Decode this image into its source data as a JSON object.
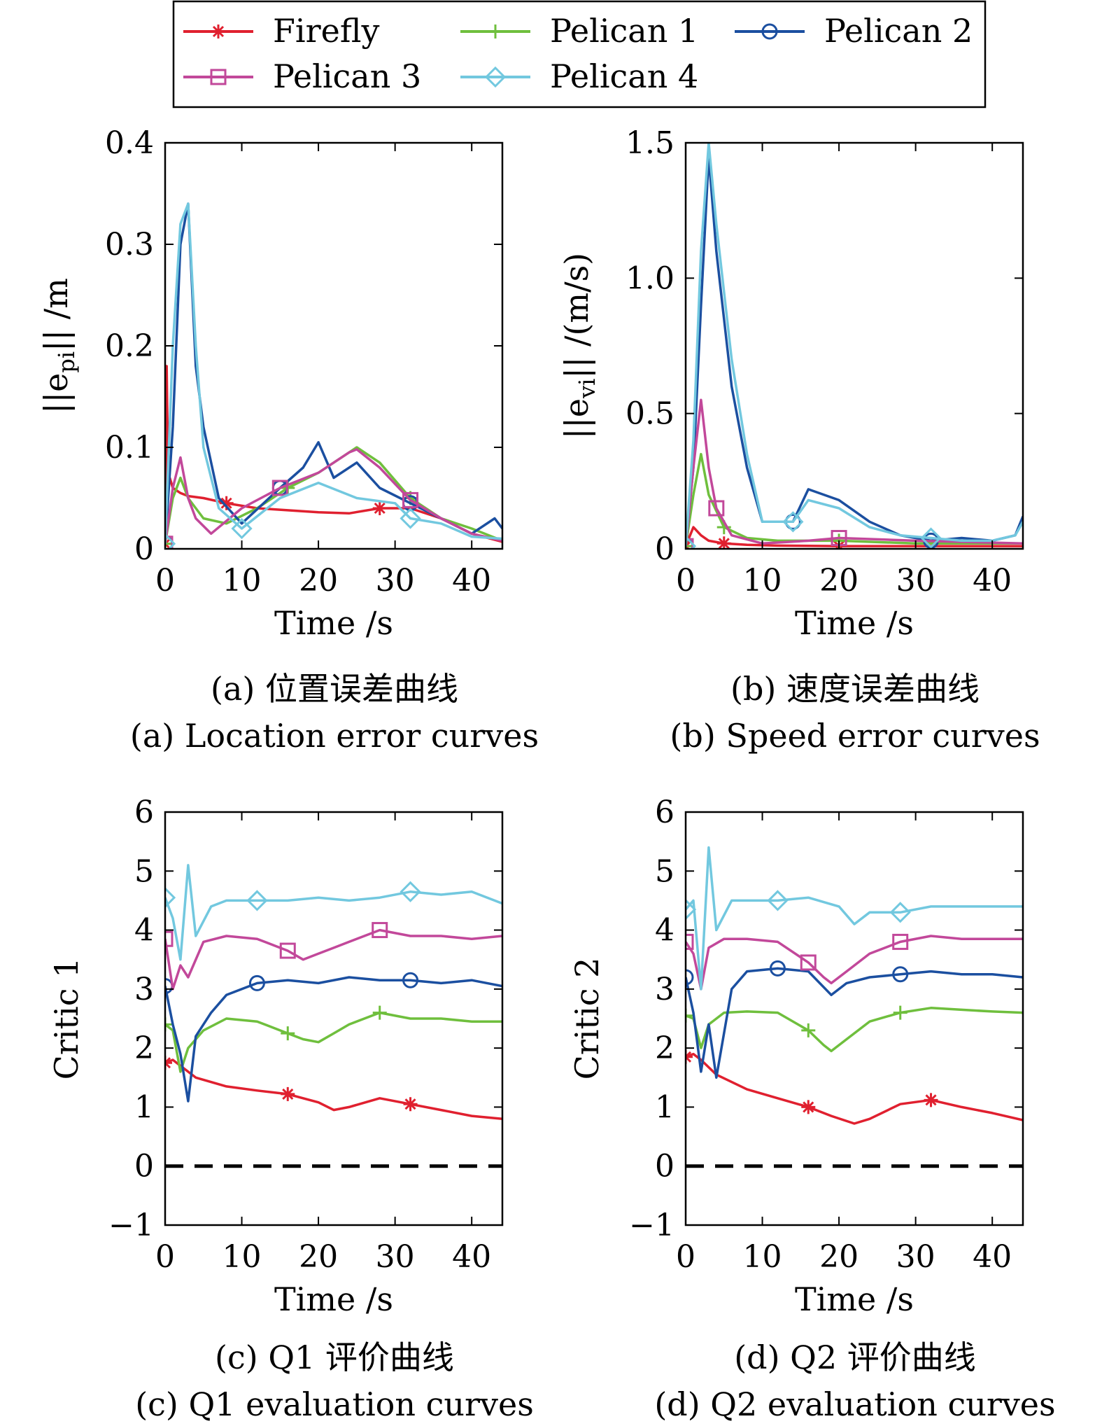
{
  "legend": [
    {
      "name": "Firefly",
      "color": "#e0202f",
      "marker": "asterisk"
    },
    {
      "name": "Pelican 1",
      "color": "#6fbf3d",
      "marker": "plus"
    },
    {
      "name": "Pelican 2",
      "color": "#1b4fa0",
      "marker": "circle"
    },
    {
      "name": "Pelican 3",
      "color": "#c2489a",
      "marker": "square"
    },
    {
      "name": "Pelican 4",
      "color": "#72c8df",
      "marker": "diamond"
    }
  ],
  "chart_data": [
    {
      "id": "a",
      "type": "line",
      "caption_cn": "(a) 位置误差曲线",
      "caption_en": "(a) Location error curves",
      "xlabel": "Time /s",
      "ylabel": "||e_pi|| /m",
      "ylabel_main": "||e",
      "ylabel_sub": "pi",
      "ylabel_tail": "|| /m",
      "xlim": [
        0,
        44
      ],
      "ylim": [
        0,
        0.4
      ],
      "xticks": [
        0,
        10,
        20,
        30,
        40
      ],
      "xticklabels": [
        "0",
        "10",
        "20",
        "30",
        "40"
      ],
      "yticks": [
        0,
        0.1,
        0.2,
        0.3,
        0.4
      ],
      "yticklabels": [
        "0",
        "0.1",
        "0.2",
        "0.3",
        "0.4"
      ],
      "series": [
        {
          "name": "Firefly",
          "x": [
            0,
            0.2,
            0.4,
            0.6,
            1,
            2,
            3,
            5,
            8,
            12,
            16,
            20,
            24,
            28,
            32,
            36,
            40,
            44
          ],
          "y": [
            0.005,
            0.18,
            0.06,
            0.07,
            0.06,
            0.055,
            0.052,
            0.05,
            0.045,
            0.04,
            0.038,
            0.036,
            0.035,
            0.04,
            0.04,
            0.03,
            0.015,
            0.007
          ]
        },
        {
          "name": "Pelican 1",
          "x": [
            0,
            1,
            2,
            3,
            5,
            8,
            12,
            16,
            20,
            24,
            25,
            28,
            32,
            36,
            40,
            44
          ],
          "y": [
            0.005,
            0.05,
            0.07,
            0.05,
            0.03,
            0.025,
            0.04,
            0.06,
            0.075,
            0.095,
            0.1,
            0.085,
            0.05,
            0.03,
            0.02,
            0.008
          ]
        },
        {
          "name": "Pelican 2",
          "x": [
            0,
            1,
            2,
            3,
            4,
            5,
            7,
            10,
            15,
            18,
            20,
            22,
            25,
            28,
            32,
            36,
            40,
            43,
            44
          ],
          "y": [
            0.005,
            0.12,
            0.3,
            0.34,
            0.18,
            0.12,
            0.05,
            0.025,
            0.06,
            0.08,
            0.105,
            0.07,
            0.085,
            0.06,
            0.045,
            0.03,
            0.015,
            0.03,
            0.02
          ]
        },
        {
          "name": "Pelican 3",
          "x": [
            0,
            1,
            2,
            3,
            4,
            6,
            10,
            15,
            20,
            24,
            25,
            28,
            32,
            36,
            40,
            44
          ],
          "y": [
            0.005,
            0.06,
            0.09,
            0.05,
            0.03,
            0.015,
            0.04,
            0.06,
            0.075,
            0.095,
            0.098,
            0.08,
            0.048,
            0.03,
            0.015,
            0.008
          ]
        },
        {
          "name": "Pelican 4",
          "x": [
            0,
            1,
            2,
            3,
            4,
            5,
            7,
            10,
            15,
            20,
            25,
            30,
            32,
            36,
            40,
            44
          ],
          "y": [
            0.005,
            0.2,
            0.32,
            0.34,
            0.2,
            0.1,
            0.04,
            0.02,
            0.05,
            0.065,
            0.05,
            0.045,
            0.03,
            0.025,
            0.012,
            0.01
          ]
        }
      ]
    },
    {
      "id": "b",
      "type": "line",
      "caption_cn": "(b) 速度误差曲线",
      "caption_en": "(b) Speed error curves",
      "xlabel": "Time /s",
      "ylabel": "||e_vi|| /(m/s)",
      "ylabel_main": "||e",
      "ylabel_sub": "vi",
      "ylabel_tail": "|| /(m/s)",
      "xlim": [
        0,
        44
      ],
      "ylim": [
        0,
        1.5
      ],
      "xticks": [
        0,
        10,
        20,
        30,
        40
      ],
      "xticklabels": [
        "0",
        "10",
        "20",
        "30",
        "40"
      ],
      "yticks": [
        0,
        0.5,
        1.0,
        1.5
      ],
      "yticklabels": [
        "0",
        "0.5",
        "1.0",
        "1.5"
      ],
      "series": [
        {
          "name": "Firefly",
          "x": [
            0,
            1,
            2,
            3,
            5,
            8,
            12,
            20,
            30,
            44
          ],
          "y": [
            0.01,
            0.08,
            0.05,
            0.03,
            0.02,
            0.015,
            0.012,
            0.01,
            0.01,
            0.01
          ]
        },
        {
          "name": "Pelican 1",
          "x": [
            0,
            1,
            2,
            3,
            5,
            8,
            12,
            20,
            30,
            44
          ],
          "y": [
            0.01,
            0.2,
            0.35,
            0.2,
            0.08,
            0.04,
            0.03,
            0.03,
            0.02,
            0.02
          ]
        },
        {
          "name": "Pelican 2",
          "x": [
            0,
            1,
            2,
            3,
            4,
            6,
            8,
            10,
            14,
            16,
            20,
            24,
            28,
            32,
            36,
            40,
            43,
            44
          ],
          "y": [
            0.01,
            0.3,
            0.9,
            1.45,
            1.1,
            0.6,
            0.3,
            0.1,
            0.1,
            0.22,
            0.18,
            0.1,
            0.05,
            0.03,
            0.04,
            0.03,
            0.05,
            0.12
          ]
        },
        {
          "name": "Pelican 3",
          "x": [
            0,
            1,
            2,
            3,
            4,
            6,
            10,
            16,
            20,
            30,
            44
          ],
          "y": [
            0.01,
            0.3,
            0.55,
            0.3,
            0.15,
            0.05,
            0.02,
            0.03,
            0.04,
            0.03,
            0.02
          ]
        },
        {
          "name": "Pelican 4",
          "x": [
            0,
            1,
            2,
            3,
            4,
            6,
            8,
            10,
            14,
            16,
            20,
            24,
            28,
            32,
            36,
            40,
            43,
            44
          ],
          "y": [
            0.01,
            0.4,
            1.1,
            1.5,
            1.2,
            0.7,
            0.35,
            0.1,
            0.1,
            0.18,
            0.15,
            0.08,
            0.05,
            0.04,
            0.03,
            0.03,
            0.05,
            0.1
          ]
        }
      ]
    },
    {
      "id": "c",
      "type": "line",
      "caption_cn": "(c) Q1 评价曲线",
      "caption_en": "(c) Q1 evaluation curves",
      "xlabel": "Time /s",
      "ylabel": "Critic 1",
      "ylabel_main": "Critic 1",
      "ylabel_sub": "",
      "ylabel_tail": "",
      "xlim": [
        0,
        44
      ],
      "ylim": [
        -1,
        6
      ],
      "xticks": [
        0,
        10,
        20,
        30,
        40
      ],
      "xticklabels": [
        "0",
        "10",
        "20",
        "30",
        "40"
      ],
      "yticks": [
        -1,
        0,
        1,
        2,
        3,
        4,
        5,
        6
      ],
      "yticklabels": [
        "−1",
        "0",
        "1",
        "2",
        "3",
        "4",
        "5",
        "6"
      ],
      "zero_line": true,
      "series": [
        {
          "name": "Firefly",
          "x": [
            0,
            1,
            2,
            4,
            8,
            12,
            16,
            20,
            22,
            24,
            28,
            32,
            36,
            40,
            44
          ],
          "y": [
            1.75,
            1.8,
            1.7,
            1.5,
            1.35,
            1.28,
            1.22,
            1.08,
            0.95,
            1.0,
            1.15,
            1.05,
            0.95,
            0.85,
            0.8
          ]
        },
        {
          "name": "Pelican 1",
          "x": [
            0,
            1,
            2,
            3,
            5,
            8,
            12,
            16,
            18,
            20,
            22,
            24,
            28,
            32,
            36,
            40,
            44
          ],
          "y": [
            2.4,
            2.3,
            1.6,
            2.0,
            2.3,
            2.5,
            2.45,
            2.25,
            2.15,
            2.1,
            2.25,
            2.4,
            2.6,
            2.5,
            2.5,
            2.45,
            2.45
          ]
        },
        {
          "name": "Pelican 2",
          "x": [
            0,
            1,
            2,
            3,
            4,
            6,
            8,
            12,
            16,
            20,
            24,
            28,
            32,
            36,
            40,
            44
          ],
          "y": [
            3.05,
            2.4,
            1.9,
            1.1,
            2.2,
            2.6,
            2.9,
            3.1,
            3.15,
            3.1,
            3.2,
            3.15,
            3.15,
            3.1,
            3.15,
            3.05
          ]
        },
        {
          "name": "Pelican 3",
          "x": [
            0,
            1,
            2,
            3,
            5,
            8,
            12,
            16,
            18,
            20,
            22,
            24,
            28,
            32,
            36,
            40,
            44
          ],
          "y": [
            3.85,
            3.0,
            3.4,
            3.2,
            3.8,
            3.9,
            3.85,
            3.65,
            3.5,
            3.6,
            3.7,
            3.8,
            4.0,
            3.9,
            3.9,
            3.85,
            3.9
          ]
        },
        {
          "name": "Pelican 4",
          "x": [
            0,
            1,
            2,
            3,
            4,
            6,
            8,
            12,
            16,
            20,
            24,
            28,
            32,
            36,
            40,
            44
          ],
          "y": [
            4.55,
            4.2,
            3.5,
            5.1,
            3.9,
            4.4,
            4.5,
            4.5,
            4.5,
            4.55,
            4.5,
            4.55,
            4.65,
            4.6,
            4.65,
            4.45
          ]
        }
      ]
    },
    {
      "id": "d",
      "type": "line",
      "caption_cn": "(d) Q2 评价曲线",
      "caption_en": "(d) Q2 evaluation curves",
      "xlabel": "Time /s",
      "ylabel": "Critic 2",
      "ylabel_main": "Critic 2",
      "ylabel_sub": "",
      "ylabel_tail": "",
      "xlim": [
        0,
        44
      ],
      "ylim": [
        -1,
        6
      ],
      "xticks": [
        0,
        10,
        20,
        30,
        40
      ],
      "xticklabels": [
        "0",
        "10",
        "20",
        "30",
        "40"
      ],
      "yticks": [
        -1,
        0,
        1,
        2,
        3,
        4,
        5,
        6
      ],
      "yticklabels": [
        "−1",
        "0",
        "1",
        "2",
        "3",
        "4",
        "5",
        "6"
      ],
      "zero_line": true,
      "series": [
        {
          "name": "Firefly",
          "x": [
            0,
            1,
            2,
            4,
            8,
            12,
            16,
            19,
            22,
            24,
            28,
            32,
            36,
            40,
            44
          ],
          "y": [
            1.85,
            1.9,
            1.8,
            1.55,
            1.3,
            1.15,
            1.0,
            0.85,
            0.72,
            0.8,
            1.05,
            1.12,
            1.0,
            0.9,
            0.78
          ]
        },
        {
          "name": "Pelican 1",
          "x": [
            0,
            1,
            2,
            3,
            5,
            8,
            12,
            16,
            18,
            19,
            21,
            24,
            28,
            32,
            36,
            40,
            44
          ],
          "y": [
            2.55,
            2.5,
            2.0,
            2.4,
            2.6,
            2.62,
            2.6,
            2.3,
            2.05,
            1.95,
            2.15,
            2.45,
            2.6,
            2.68,
            2.65,
            2.62,
            2.6
          ]
        },
        {
          "name": "Pelican 2",
          "x": [
            0,
            1,
            2,
            3,
            4,
            6,
            8,
            12,
            16,
            19,
            21,
            24,
            28,
            32,
            36,
            40,
            44
          ],
          "y": [
            3.2,
            2.6,
            1.6,
            2.4,
            1.5,
            3.0,
            3.3,
            3.35,
            3.3,
            2.9,
            3.1,
            3.2,
            3.25,
            3.3,
            3.25,
            3.25,
            3.2
          ]
        },
        {
          "name": "Pelican 3",
          "x": [
            0,
            1,
            2,
            3,
            5,
            8,
            12,
            16,
            18,
            19,
            21,
            24,
            28,
            32,
            36,
            40,
            44
          ],
          "y": [
            3.8,
            3.6,
            3.0,
            3.7,
            3.85,
            3.85,
            3.8,
            3.45,
            3.2,
            3.1,
            3.3,
            3.6,
            3.8,
            3.9,
            3.85,
            3.85,
            3.85
          ]
        },
        {
          "name": "Pelican 4",
          "x": [
            0,
            1,
            2,
            3,
            4,
            6,
            8,
            12,
            16,
            20,
            22,
            24,
            28,
            32,
            36,
            40,
            44
          ],
          "y": [
            4.35,
            4.5,
            3.0,
            5.4,
            4.0,
            4.5,
            4.5,
            4.5,
            4.55,
            4.4,
            4.1,
            4.3,
            4.3,
            4.4,
            4.4,
            4.4,
            4.4
          ]
        }
      ]
    }
  ]
}
